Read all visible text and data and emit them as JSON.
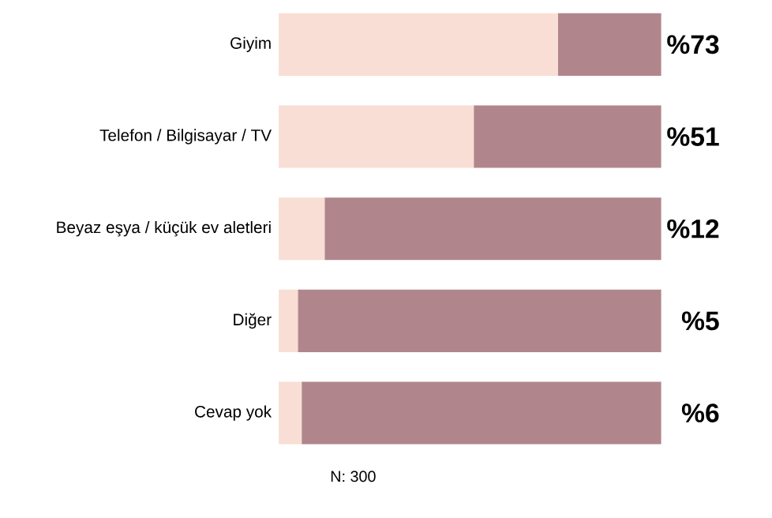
{
  "chart_data": {
    "type": "bar",
    "orientation": "horizontal",
    "stacked": true,
    "categories": [
      "Giyim",
      "Telefon / Bilgisayar / TV",
      "Beyaz eşya / küçük ev aletleri",
      "Diğer",
      "Cevap yok"
    ],
    "series": [
      {
        "color": "#f8ded4",
        "values": [
          73,
          51,
          12,
          5,
          6
        ],
        "value_labels": [
          "%73",
          "%51",
          "%12",
          "%5",
          "%6"
        ]
      },
      {
        "color": "#b0868c",
        "values": [
          27,
          49,
          88,
          95,
          94
        ]
      }
    ],
    "xlim": [
      0,
      100
    ],
    "tick_labels": "y",
    "annotations": [
      "N: 300"
    ]
  }
}
